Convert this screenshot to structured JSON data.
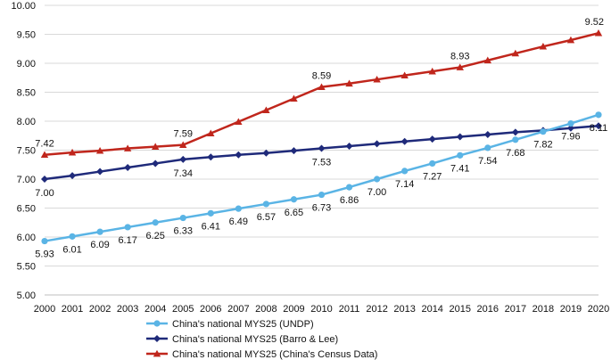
{
  "chart_data": {
    "type": "line",
    "title": "",
    "xlabel": "",
    "ylabel": "",
    "ylim": [
      5.0,
      10.0
    ],
    "ytick_labels": [
      "5.00",
      "5.50",
      "6.00",
      "6.50",
      "7.00",
      "7.50",
      "8.00",
      "8.50",
      "9.00",
      "9.50",
      "10.00"
    ],
    "categories": [
      "2000",
      "2001",
      "2002",
      "2003",
      "2004",
      "2005",
      "2006",
      "2007",
      "2008",
      "2009",
      "2010",
      "2011",
      "2012",
      "2013",
      "2014",
      "2015",
      "2016",
      "2017",
      "2018",
      "2019",
      "2020"
    ],
    "series": [
      {
        "name": "China's national MYS25 (UNDP)",
        "color": "#5ab4e5",
        "marker": "circle",
        "values": [
          5.93,
          6.01,
          6.09,
          6.17,
          6.25,
          6.33,
          6.41,
          6.49,
          6.57,
          6.65,
          6.73,
          6.86,
          7.0,
          7.14,
          7.27,
          7.41,
          7.54,
          7.68,
          7.82,
          7.96,
          8.11
        ],
        "labels": [
          "5.93",
          "6.01",
          "6.09",
          "6.17",
          "6.25",
          "6.33",
          "6.41",
          "6.49",
          "6.57",
          "6.65",
          "6.73",
          "6.86",
          "7.00",
          "7.14",
          "7.27",
          "7.41",
          "7.54",
          "7.68",
          "7.82",
          "7.96",
          "8.11"
        ]
      },
      {
        "name": "China's national MYS25 (Barro & Lee)",
        "color": "#1f2a7a",
        "marker": "diamond",
        "values": [
          7.0,
          7.06,
          7.13,
          7.2,
          7.27,
          7.34,
          7.38,
          7.42,
          7.45,
          7.49,
          7.53,
          7.57,
          7.61,
          7.65,
          7.69,
          7.73,
          7.77,
          7.81,
          7.84,
          7.88,
          7.92
        ],
        "labels": {
          "0": "7.00",
          "5": "7.34",
          "10": "7.53"
        }
      },
      {
        "name": "China's national MYS25 (China's Census Data)",
        "color": "#c0261c",
        "marker": "triangle",
        "values": [
          7.42,
          7.46,
          7.49,
          7.53,
          7.56,
          7.59,
          7.79,
          7.99,
          8.19,
          8.39,
          8.59,
          8.65,
          8.72,
          8.79,
          8.86,
          8.93,
          9.05,
          9.17,
          9.29,
          9.4,
          9.52
        ],
        "labels": {
          "0": "7.42",
          "5": "7.59",
          "10": "8.59",
          "15": "8.93",
          "20": "9.52"
        }
      }
    ],
    "legend_position": "bottom"
  }
}
